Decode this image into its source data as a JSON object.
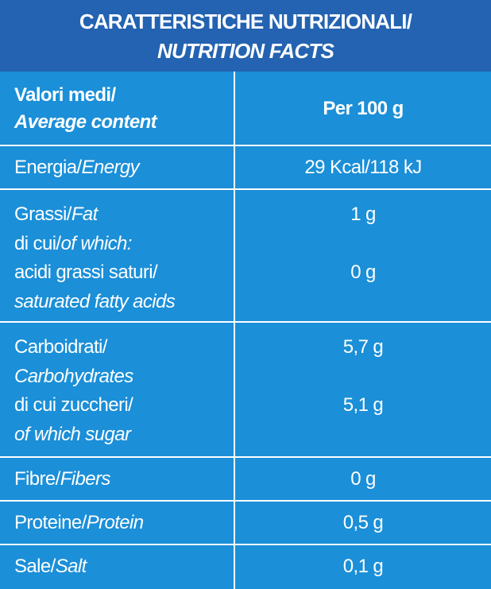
{
  "header": {
    "line1": "CARATTERISTICHE NUTRIZIONALI/",
    "line2": "NUTRITION FACTS"
  },
  "table": {
    "head": {
      "lines": [
        {
          "roman": "Valori medi/"
        },
        {
          "italic": "Average content"
        }
      ],
      "values": [
        "Per 100 g"
      ]
    },
    "rows": [
      {
        "lines": [
          {
            "roman": "Energia/",
            "italic": "Energy"
          }
        ],
        "values": [
          "29 Kcal/118 kJ"
        ]
      },
      {
        "lines": [
          {
            "roman": "Grassi/",
            "italic": "Fat"
          },
          {
            "roman": "di cui/",
            "italic": "of which:"
          },
          {
            "roman": "acidi grassi saturi/"
          },
          {
            "italic": "saturated fatty acids"
          }
        ],
        "values": [
          "1 g",
          "0 g"
        ]
      },
      {
        "lines": [
          {
            "roman": "Carboidrati/"
          },
          {
            "italic": "Carbohydrates"
          },
          {
            "roman": "di cui zuccheri/"
          },
          {
            "italic": "of which sugar"
          }
        ],
        "values": [
          "5,7 g",
          "5,1 g"
        ]
      },
      {
        "lines": [
          {
            "roman": "Fibre/",
            "italic": "Fibers"
          }
        ],
        "values": [
          "0 g"
        ]
      },
      {
        "lines": [
          {
            "roman": "Proteine/",
            "italic": "Protein"
          }
        ],
        "values": [
          "0,5 g"
        ]
      },
      {
        "lines": [
          {
            "roman": "Sale/",
            "italic": "Salt"
          }
        ],
        "values": [
          "0,1 g"
        ]
      }
    ]
  }
}
